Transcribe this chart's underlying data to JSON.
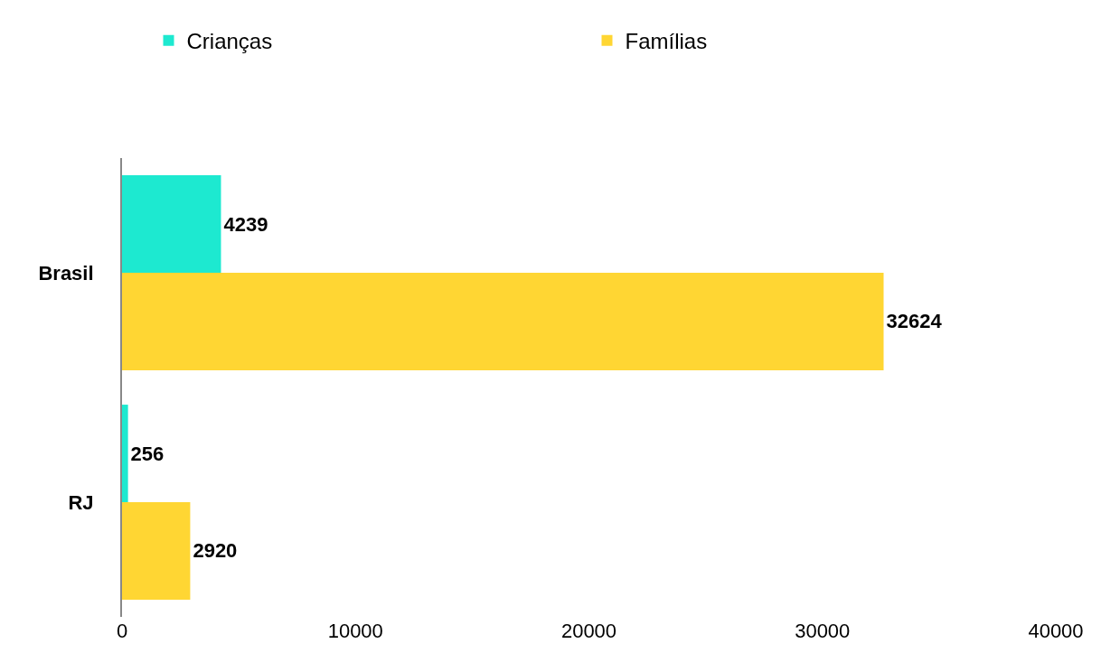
{
  "chart_data": {
    "type": "bar",
    "orientation": "horizontal",
    "categories": [
      "Brasil",
      "RJ"
    ],
    "series": [
      {
        "name": "Crianças",
        "color": "#1de9d0",
        "values": [
          4239,
          256
        ]
      },
      {
        "name": "Famílias",
        "color": "#ffd633",
        "values": [
          32624,
          2920
        ]
      }
    ],
    "xlim": [
      0,
      40000
    ],
    "xticks": [
      0,
      10000,
      20000,
      30000,
      40000
    ],
    "grid": false,
    "legend": "top",
    "data_labels": true
  }
}
